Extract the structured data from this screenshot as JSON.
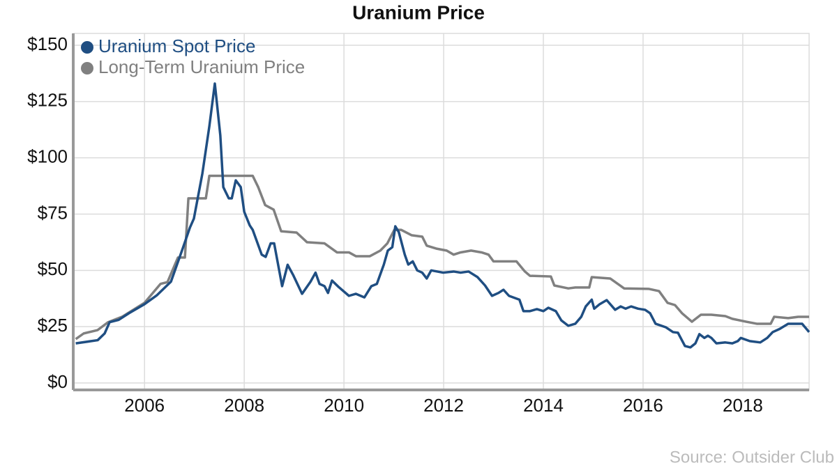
{
  "chart_data": {
    "type": "line",
    "title": "Uranium Price",
    "source": "Source: Outsider Club",
    "xlim": [
      2004.57,
      2019.33
    ],
    "xticks": [
      2006,
      2008,
      2010,
      2012,
      2014,
      2016,
      2018
    ],
    "ylim": [
      0,
      150
    ],
    "yticks": [
      {
        "value": 0,
        "label": "$0"
      },
      {
        "value": 25,
        "label": "$25"
      },
      {
        "value": 50,
        "label": "$50"
      },
      {
        "value": 75,
        "label": "$75"
      },
      {
        "value": 100,
        "label": "$100"
      },
      {
        "value": 125,
        "label": "$125"
      },
      {
        "value": 150,
        "label": "$150"
      }
    ],
    "grid": true,
    "legend": "top-left",
    "series": [
      {
        "name": "Uranium Spot Price",
        "color": "#1f4e82",
        "x": [
          2004.62,
          2005.06,
          2005.2,
          2005.3,
          2005.48,
          2005.69,
          2006.0,
          2006.25,
          2006.53,
          2006.77,
          2006.91,
          2006.99,
          2007.16,
          2007.3,
          2007.41,
          2007.52,
          2007.58,
          2007.69,
          2007.75,
          2007.83,
          2007.93,
          2008.0,
          2008.11,
          2008.17,
          2008.35,
          2008.43,
          2008.53,
          2008.6,
          2008.76,
          2008.87,
          2008.98,
          2009.16,
          2009.33,
          2009.43,
          2009.51,
          2009.61,
          2009.68,
          2009.76,
          2009.89,
          2010.1,
          2010.24,
          2010.41,
          2010.55,
          2010.66,
          2010.8,
          2010.88,
          2010.97,
          2011.03,
          2011.1,
          2011.22,
          2011.29,
          2011.38,
          2011.47,
          2011.57,
          2011.66,
          2011.75,
          2011.99,
          2012.2,
          2012.34,
          2012.5,
          2012.68,
          2012.83,
          2012.97,
          2013.1,
          2013.2,
          2013.31,
          2013.52,
          2013.6,
          2013.73,
          2013.87,
          2014.0,
          2014.1,
          2014.25,
          2014.36,
          2014.5,
          2014.64,
          2014.76,
          2014.85,
          2014.97,
          2015.02,
          2015.13,
          2015.27,
          2015.44,
          2015.55,
          2015.65,
          2015.76,
          2015.9,
          2016.04,
          2016.14,
          2016.25,
          2016.46,
          2016.6,
          2016.7,
          2016.84,
          2016.95,
          2017.05,
          2017.13,
          2017.23,
          2017.3,
          2017.37,
          2017.47,
          2017.65,
          2017.79,
          2017.9,
          2017.96,
          2018.14,
          2018.35,
          2018.49,
          2018.6,
          2018.74,
          2018.91,
          2019.05,
          2019.19,
          2019.33
        ],
        "values": [
          17.6,
          19,
          22,
          27,
          28,
          31,
          35,
          39,
          45,
          60,
          69,
          73,
          93,
          114,
          133,
          110,
          87,
          82,
          82,
          90,
          87,
          76,
          70,
          68,
          57,
          56,
          62,
          62,
          43,
          52.5,
          48,
          39.6,
          45,
          49,
          44,
          43,
          40,
          45.5,
          42.7,
          38.7,
          39.6,
          38,
          43,
          44,
          52.6,
          58.8,
          60.3,
          69.6,
          67,
          57,
          52.6,
          54,
          50,
          49,
          46.4,
          50,
          49,
          49.5,
          49,
          49.5,
          47,
          43.3,
          38.7,
          40,
          41.4,
          38.7,
          37,
          31.9,
          31.9,
          32.8,
          31.9,
          33.4,
          31.9,
          27.8,
          25.4,
          26.3,
          29.4,
          34,
          37,
          33,
          35,
          36.8,
          32.5,
          34,
          33,
          34,
          33,
          32.5,
          31,
          26.3,
          24.7,
          22.6,
          22.3,
          16.4,
          15.8,
          17.6,
          21.7,
          20,
          21,
          20,
          17.6,
          18,
          17.6,
          18.6,
          20,
          18.6,
          18,
          20,
          22.6,
          24,
          26.3,
          26.3,
          26.3,
          22.6
        ]
      },
      {
        "name": "Long-Term Uranium Price",
        "color": "#808080",
        "x": [
          2004.62,
          2004.78,
          2005.06,
          2005.27,
          2005.55,
          2006.0,
          2006.32,
          2006.46,
          2006.67,
          2006.81,
          2006.88,
          2007.23,
          2007.3,
          2008.17,
          2008.28,
          2008.42,
          2008.59,
          2008.74,
          2009.05,
          2009.26,
          2009.61,
          2009.86,
          2010.1,
          2010.24,
          2010.52,
          2010.73,
          2010.87,
          2011.01,
          2011.15,
          2011.36,
          2011.57,
          2011.66,
          2011.85,
          2012.06,
          2012.2,
          2012.34,
          2012.55,
          2012.76,
          2012.9,
          2013.0,
          2013.46,
          2013.63,
          2013.73,
          2014.15,
          2014.22,
          2014.5,
          2014.64,
          2014.92,
          2014.97,
          2015.34,
          2015.62,
          2016.11,
          2016.32,
          2016.49,
          2016.64,
          2016.78,
          2016.98,
          2017.16,
          2017.37,
          2017.65,
          2017.79,
          2018.07,
          2018.28,
          2018.56,
          2018.63,
          2018.91,
          2019.12,
          2019.33
        ],
        "values": [
          19.5,
          22,
          23.5,
          27,
          29.4,
          35.6,
          44,
          44.8,
          55.7,
          55.7,
          82,
          82,
          92,
          92,
          87,
          79,
          77,
          67.4,
          66.8,
          62.5,
          62,
          58,
          58,
          56.3,
          56.3,
          58.8,
          62,
          68,
          68,
          65.6,
          65,
          61,
          59.7,
          58.8,
          57,
          58,
          58.8,
          58,
          57,
          54,
          54,
          49.5,
          47.6,
          47.3,
          43.3,
          42,
          42.4,
          42.4,
          47,
          46.4,
          42,
          41.8,
          40.8,
          35.6,
          34.6,
          31,
          27.2,
          30.3,
          30.3,
          29.7,
          28.5,
          27.2,
          26.3,
          26.3,
          29.4,
          28.8,
          29.4,
          29.4
        ]
      }
    ]
  }
}
